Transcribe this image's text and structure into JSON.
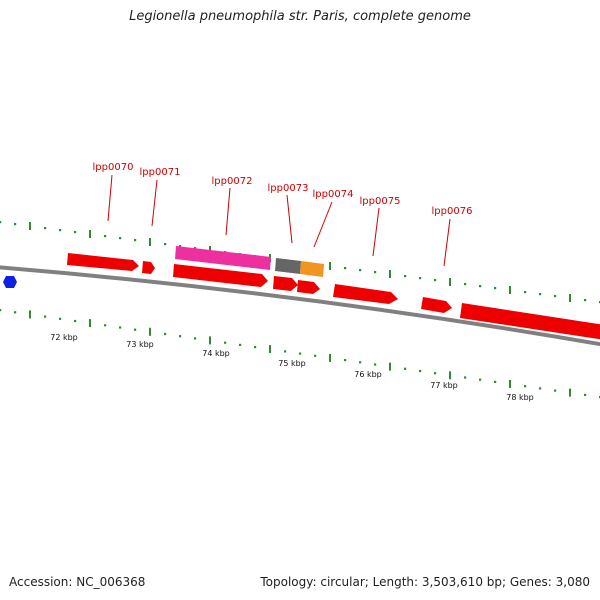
{
  "title": "Legionella pneumophila str. Paris, complete genome",
  "footer": {
    "accession": "Accession: NC_006368",
    "stats": "Topology: circular; Length: 3,503,610 bp; Genes: 3,080"
  },
  "colors": {
    "backbone": "#808080",
    "forward_gene": "#ee0000",
    "highlight_gene": "#ee2fa0",
    "pseudo_gene": "#666666",
    "rna_gene": "#f29420",
    "tick": "#2e8b2e",
    "label": "#cc0000",
    "origin_marker": "#1020e0"
  },
  "gene_labels": [
    "lpp0070",
    "lpp0071",
    "lpp0072",
    "lpp0073",
    "lpp0074",
    "lpp0075",
    "lpp0076"
  ],
  "kbp_labels": [
    "72 kbp",
    "73 kbp",
    "74 kbp",
    "75 kbp",
    "76 kbp",
    "77 kbp",
    "78 kbp"
  ]
}
